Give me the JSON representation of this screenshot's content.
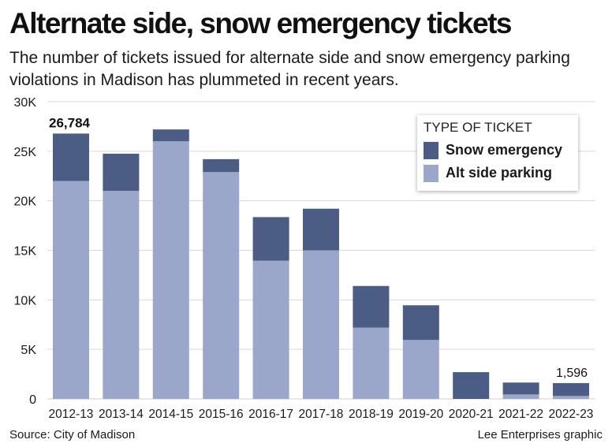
{
  "header": {
    "title": "Alternate side, snow emergency tickets",
    "subtitle": "The number of tickets issued for alternate side and snow emergency parking violations in Madison has plummeted in recent years."
  },
  "footer": {
    "source": "Source: City of Madison",
    "credit": "Lee Enterprises graphic"
  },
  "legend": {
    "title": "TYPE OF TICKET",
    "items": [
      {
        "label": "Snow emergency",
        "color": "#4b5d84"
      },
      {
        "label": "Alt side parking",
        "color": "#9aa6ca"
      }
    ]
  },
  "chart_data": {
    "type": "bar",
    "stacked": true,
    "title": "Alternate side, snow emergency tickets",
    "xlabel": "",
    "ylabel": "",
    "ylim": [
      0,
      30000
    ],
    "yticks": [
      0,
      5000,
      10000,
      15000,
      20000,
      25000,
      30000
    ],
    "ytick_labels": [
      "0",
      "5K",
      "10K",
      "15K",
      "20K",
      "25K",
      "30K"
    ],
    "grid": true,
    "legend_position": "top-right",
    "categories": [
      "2012-13",
      "2013-14",
      "2014-15",
      "2015-16",
      "2016-17",
      "2017-18",
      "2018-19",
      "2019-20",
      "2020-21",
      "2021-22",
      "2022-23"
    ],
    "series": [
      {
        "name": "Alt side parking",
        "color": "#9aa6ca",
        "values": [
          22000,
          21000,
          26000,
          22900,
          13950,
          15000,
          7200,
          5950,
          0,
          450,
          300
        ]
      },
      {
        "name": "Snow emergency",
        "color": "#4b5d84",
        "values": [
          4784,
          3750,
          1200,
          1300,
          4400,
          4200,
          4200,
          3500,
          2700,
          1200,
          1296
        ]
      }
    ],
    "annotations": [
      {
        "category": "2012-13",
        "text": "26,784"
      },
      {
        "category": "2022-23",
        "text": "1,596"
      }
    ]
  }
}
